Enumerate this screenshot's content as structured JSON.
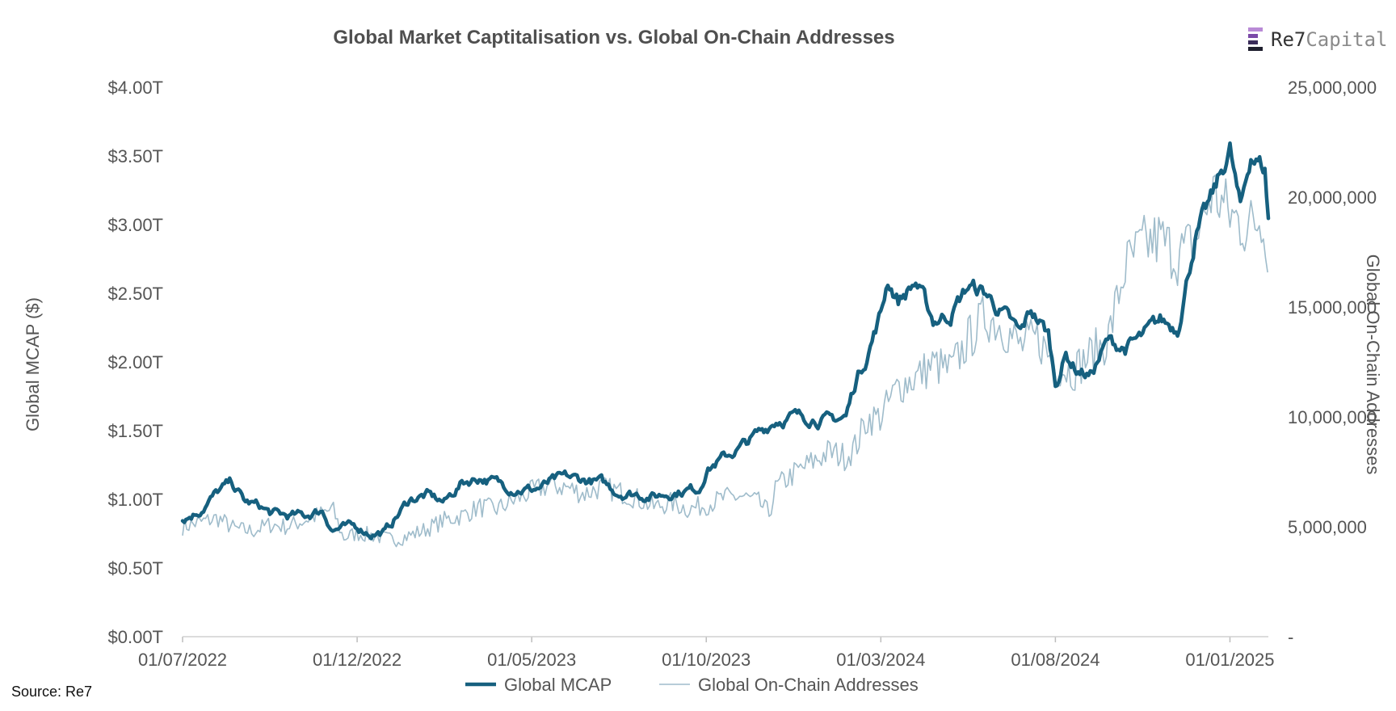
{
  "source_note": "Source: Re7",
  "brand": {
    "part1": "Re7",
    "part2": "Capital",
    "icon": "re7-logo-icon",
    "icon_colors": [
      "#b98ad6",
      "#7b4aa8",
      "#3a2c5a",
      "#1f1f2e"
    ]
  },
  "chart_data": {
    "type": "line",
    "title": "Global Market Captitalisation vs. Global On-Chain Addresses",
    "ylabel": "Global MCAP ($)",
    "y2label": "Global On-Chain Addresses",
    "ylim": [
      0,
      4
    ],
    "y2lim": [
      0,
      25000000
    ],
    "y_ticks": [
      "$0.00T",
      "$0.50T",
      "$1.00T",
      "$1.50T",
      "$2.00T",
      "$2.50T",
      "$3.00T",
      "$3.50T",
      "$4.00T"
    ],
    "y2_ticks": [
      "-",
      "5,000,000",
      "10,000,000",
      "15,000,000",
      "20,000,000",
      "25,000,000"
    ],
    "x_ticks": [
      "01/07/2022",
      "01/12/2022",
      "01/05/2023",
      "01/10/2023",
      "01/03/2024",
      "01/08/2024",
      "01/01/2025"
    ],
    "x_tick_months": [
      0,
      5,
      10,
      15,
      20,
      25,
      30
    ],
    "x_range_months": [
      0,
      31.1
    ],
    "legend": [
      "Global MCAP",
      "Global On-Chain Addresses"
    ],
    "colors": {
      "mcap": "#16607f",
      "addresses": "#9fbccb"
    },
    "series": [
      {
        "name": "Global MCAP",
        "axis": "left",
        "x_months": [
          0,
          0.5,
          1,
          1.4,
          1.8,
          2.2,
          2.5,
          3,
          3.5,
          4,
          4.3,
          4.5,
          5,
          5.4,
          5.8,
          6,
          6.5,
          7,
          7.5,
          8,
          8.5,
          9,
          9.5,
          10,
          10.3,
          10.5,
          11,
          11.5,
          12,
          12.5,
          13,
          13.5,
          14,
          14.5,
          14.8,
          15,
          15.5,
          16,
          16.5,
          17,
          17.5,
          18,
          18.5,
          19,
          19.3,
          19.6,
          20,
          20.2,
          20.5,
          21,
          21.5,
          22,
          22.5,
          23,
          23.5,
          24,
          24.3,
          24.8,
          25,
          25.3,
          25.6,
          26,
          26.5,
          27,
          27.5,
          28,
          28.5,
          29,
          29.5,
          30,
          30.3,
          30.6,
          31,
          31.1
        ],
        "values": [
          0.85,
          0.92,
          1.05,
          1.12,
          0.98,
          0.95,
          0.9,
          0.88,
          0.88,
          0.92,
          0.78,
          0.79,
          0.8,
          0.75,
          0.76,
          0.83,
          1.0,
          1.03,
          0.98,
          1.12,
          1.16,
          1.12,
          1.08,
          1.07,
          1.09,
          1.12,
          1.16,
          1.14,
          1.12,
          1.05,
          1.04,
          1.02,
          1.05,
          1.07,
          1.08,
          1.22,
          1.3,
          1.38,
          1.48,
          1.58,
          1.6,
          1.6,
          1.57,
          1.6,
          1.88,
          2.05,
          2.35,
          2.6,
          2.45,
          2.58,
          2.3,
          2.35,
          2.55,
          2.5,
          2.35,
          2.2,
          2.38,
          2.2,
          1.85,
          2.05,
          1.95,
          1.9,
          2.15,
          2.1,
          2.18,
          2.3,
          2.25,
          2.9,
          3.2,
          3.55,
          3.1,
          3.52,
          3.4,
          3.05
        ]
      },
      {
        "name": "Global On-Chain Addresses",
        "axis": "right",
        "x_months": [
          0,
          0.5,
          1,
          1.5,
          2,
          2.5,
          3,
          3.5,
          4,
          4.3,
          4.6,
          5,
          5.5,
          6,
          6.5,
          7,
          7.5,
          8,
          8.5,
          9,
          9.5,
          10,
          10.5,
          11,
          11.5,
          12,
          12.5,
          13,
          13.5,
          14,
          14.5,
          15,
          15.5,
          16,
          16.5,
          16.8,
          17,
          17.5,
          18,
          18.5,
          19,
          19.3,
          19.6,
          20,
          20.5,
          21,
          21.5,
          22,
          22.5,
          23,
          23.5,
          24,
          24.5,
          25,
          25.5,
          26,
          26.5,
          27,
          27.5,
          28,
          28.5,
          29,
          29.5,
          30,
          30.5,
          31,
          31.1
        ],
        "values": [
          5000000,
          5200000,
          5400000,
          4900000,
          4800000,
          5100000,
          5000000,
          5300000,
          5600000,
          5800000,
          4500000,
          4700000,
          4600000,
          4400000,
          4600000,
          4900000,
          5300000,
          5500000,
          5900000,
          5800000,
          6200000,
          6600000,
          6900000,
          6800000,
          6500000,
          6800000,
          6600000,
          6300000,
          5900000,
          6100000,
          5800000,
          6000000,
          6300000,
          6400000,
          6100000,
          5600000,
          6800000,
          7400000,
          7900000,
          8400000,
          8200000,
          8700000,
          9900000,
          10000000,
          11400000,
          11800000,
          12400000,
          12100000,
          13500000,
          14600000,
          14100000,
          13200000,
          13600000,
          12300000,
          12100000,
          12800000,
          13500000,
          16800000,
          17800000,
          18100000,
          17300000,
          18000000,
          20300000,
          19200000,
          18600000,
          19200000,
          16000000
        ]
      }
    ]
  }
}
